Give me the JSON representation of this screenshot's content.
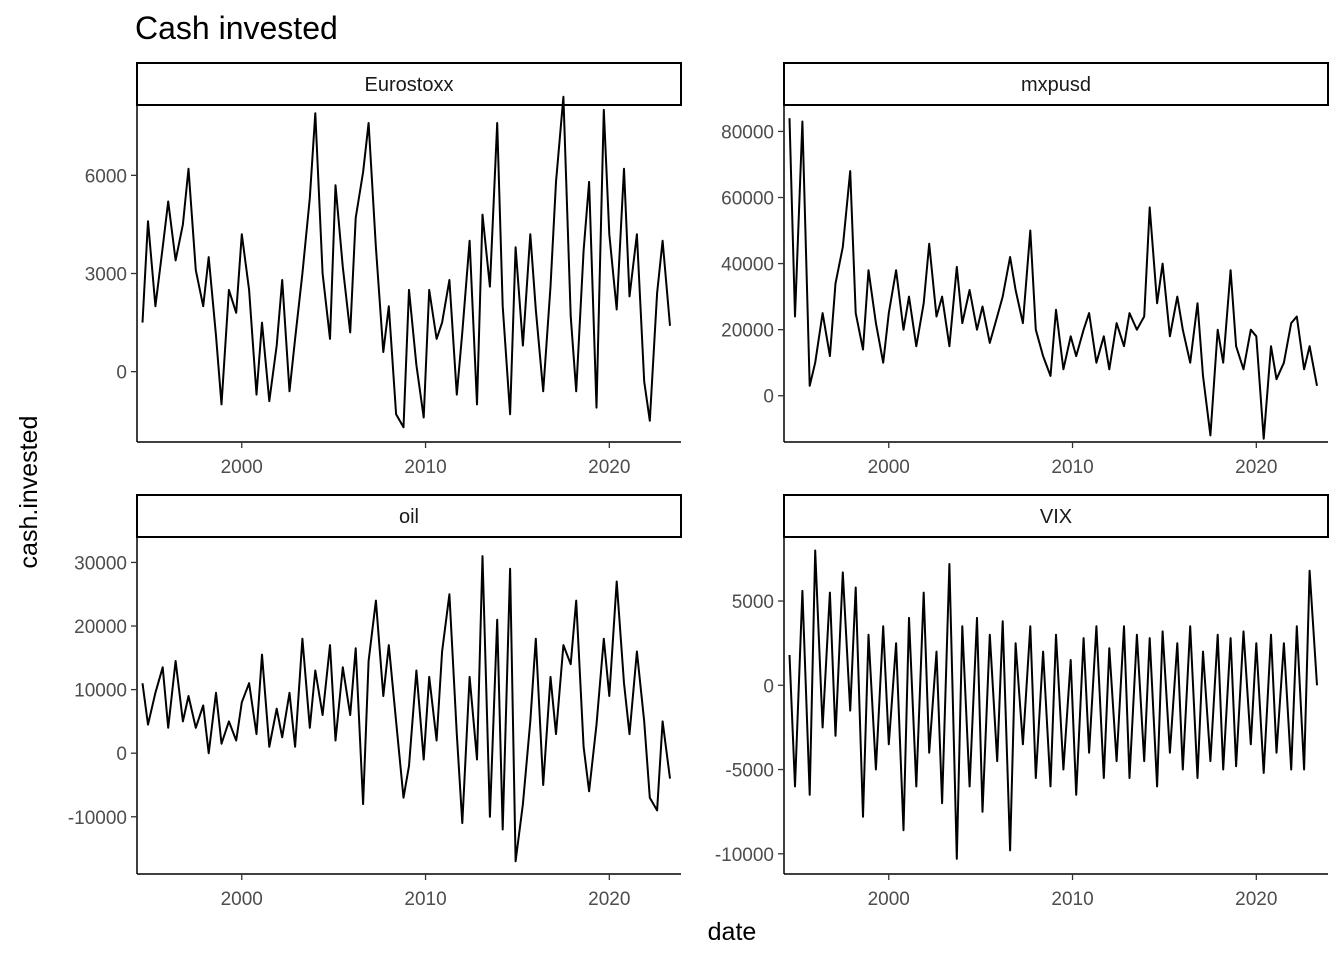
{
  "chart_data": {
    "type": "line",
    "title": "Cash invested",
    "xlabel": "date",
    "ylabel": "cash.invested",
    "grid": false,
    "line_color": "#000000",
    "panels": [
      {
        "name": "Eurostoxx",
        "xlim": [
          1994.3,
          2023.9
        ],
        "ylim": [
          -2150,
          8150
        ],
        "x_ticks": [
          2000,
          2010,
          2020
        ],
        "y_ticks": [
          0,
          3000,
          6000
        ],
        "x": [
          1994.6,
          1994.9,
          1995.3,
          1995.7,
          1996.0,
          1996.4,
          1996.8,
          1997.1,
          1997.5,
          1997.9,
          1998.2,
          1998.6,
          1998.9,
          1999.3,
          1999.7,
          2000.0,
          2000.4,
          2000.8,
          2001.1,
          2001.5,
          2001.9,
          2002.2,
          2002.6,
          2002.9,
          2003.3,
          2003.7,
          2004.0,
          2004.4,
          2004.8,
          2005.1,
          2005.5,
          2005.9,
          2006.2,
          2006.6,
          2006.9,
          2007.3,
          2007.7,
          2008.0,
          2008.4,
          2008.8,
          2009.1,
          2009.5,
          2009.9,
          2010.2,
          2010.6,
          2010.9,
          2011.3,
          2011.7,
          2012.0,
          2012.4,
          2012.8,
          2013.1,
          2013.5,
          2013.9,
          2014.2,
          2014.6,
          2014.9,
          2015.3,
          2015.7,
          2016.0,
          2016.4,
          2016.8,
          2017.1,
          2017.5,
          2017.9,
          2018.2,
          2018.6,
          2018.9,
          2019.3,
          2019.7,
          2020.0,
          2020.4,
          2020.8,
          2021.1,
          2021.5,
          2021.9,
          2022.2,
          2022.6,
          2022.9,
          2023.3
        ],
        "y": [
          1500,
          4600,
          2000,
          3800,
          5200,
          3400,
          4500,
          6200,
          3100,
          2000,
          3500,
          1100,
          -1000,
          2500,
          1800,
          4200,
          2500,
          -700,
          1500,
          -900,
          800,
          2800,
          -600,
          1000,
          3000,
          5300,
          7900,
          3000,
          1000,
          5700,
          3200,
          1200,
          4700,
          6100,
          7600,
          3800,
          600,
          2000,
          -1300,
          -1700,
          2500,
          200,
          -1400,
          2500,
          1000,
          1500,
          2800,
          -700,
          1200,
          4000,
          -1000,
          4800,
          2600,
          7600,
          2000,
          -1300,
          3800,
          800,
          4200,
          1900,
          -600,
          2600,
          5800,
          8400,
          1700,
          -600,
          3700,
          5800,
          -1100,
          8000,
          4200,
          1900,
          6200,
          2300,
          4200,
          -300,
          -1500,
          2400,
          4000,
          1400
        ]
      },
      {
        "name": "mxpusd",
        "xlim": [
          1994.3,
          2023.9
        ],
        "ylim": [
          -14000,
          88000
        ],
        "x_ticks": [
          2000,
          2010,
          2020
        ],
        "y_ticks": [
          0,
          20000,
          40000,
          60000,
          80000
        ],
        "x": [
          1994.6,
          1994.9,
          1995.3,
          1995.7,
          1996.0,
          1996.4,
          1996.8,
          1997.1,
          1997.5,
          1997.9,
          1998.2,
          1998.6,
          1998.9,
          1999.3,
          1999.7,
          2000.0,
          2000.4,
          2000.8,
          2001.1,
          2001.5,
          2001.9,
          2002.2,
          2002.6,
          2002.9,
          2003.3,
          2003.7,
          2004.0,
          2004.4,
          2004.8,
          2005.1,
          2005.5,
          2005.9,
          2006.2,
          2006.6,
          2006.9,
          2007.3,
          2007.7,
          2008.0,
          2008.4,
          2008.8,
          2009.1,
          2009.5,
          2009.9,
          2010.2,
          2010.6,
          2010.9,
          2011.3,
          2011.7,
          2012.0,
          2012.4,
          2012.8,
          2013.1,
          2013.5,
          2013.9,
          2014.2,
          2014.6,
          2014.9,
          2015.3,
          2015.7,
          2016.0,
          2016.4,
          2016.8,
          2017.1,
          2017.5,
          2017.9,
          2018.2,
          2018.6,
          2018.9,
          2019.3,
          2019.7,
          2020.0,
          2020.4,
          2020.8,
          2021.1,
          2021.5,
          2021.9,
          2022.2,
          2022.6,
          2022.9,
          2023.3
        ],
        "y": [
          84000,
          24000,
          83000,
          3000,
          10000,
          25000,
          12000,
          34000,
          45000,
          68000,
          25000,
          14000,
          38000,
          22000,
          10000,
          25000,
          38000,
          20000,
          30000,
          15000,
          28000,
          46000,
          24000,
          30000,
          15000,
          39000,
          22000,
          32000,
          20000,
          27000,
          16000,
          24000,
          30000,
          42000,
          32000,
          22000,
          50000,
          20000,
          12000,
          6000,
          26000,
          8000,
          18000,
          12000,
          20000,
          25000,
          10000,
          18000,
          8000,
          22000,
          15000,
          25000,
          20000,
          24000,
          57000,
          28000,
          40000,
          18000,
          30000,
          20000,
          10000,
          28000,
          6000,
          -12000,
          20000,
          10000,
          38000,
          15000,
          8000,
          20000,
          18000,
          -13000,
          15000,
          5000,
          10000,
          22000,
          24000,
          8000,
          15000,
          3000
        ]
      },
      {
        "name": "oil",
        "xlim": [
          1994.3,
          2023.9
        ],
        "ylim": [
          -19000,
          34000
        ],
        "x_ticks": [
          2000,
          2010,
          2020
        ],
        "y_ticks": [
          -10000,
          0,
          10000,
          20000,
          30000
        ],
        "x": [
          1994.6,
          1994.9,
          1995.3,
          1995.7,
          1996.0,
          1996.4,
          1996.8,
          1997.1,
          1997.5,
          1997.9,
          1998.2,
          1998.6,
          1998.9,
          1999.3,
          1999.7,
          2000.0,
          2000.4,
          2000.8,
          2001.1,
          2001.5,
          2001.9,
          2002.2,
          2002.6,
          2002.9,
          2003.3,
          2003.7,
          2004.0,
          2004.4,
          2004.8,
          2005.1,
          2005.5,
          2005.9,
          2006.2,
          2006.6,
          2006.9,
          2007.3,
          2007.7,
          2008.0,
          2008.4,
          2008.8,
          2009.1,
          2009.5,
          2009.9,
          2010.2,
          2010.6,
          2010.9,
          2011.3,
          2011.7,
          2012.0,
          2012.4,
          2012.8,
          2013.1,
          2013.5,
          2013.9,
          2014.2,
          2014.6,
          2014.9,
          2015.3,
          2015.7,
          2016.0,
          2016.4,
          2016.8,
          2017.1,
          2017.5,
          2017.9,
          2018.2,
          2018.6,
          2018.9,
          2019.3,
          2019.7,
          2020.0,
          2020.4,
          2020.8,
          2021.1,
          2021.5,
          2021.9,
          2022.2,
          2022.6,
          2022.9,
          2023.3
        ],
        "y": [
          11000,
          4500,
          9500,
          13500,
          4000,
          14500,
          5000,
          9000,
          4000,
          7500,
          0,
          9500,
          1500,
          5000,
          2000,
          8000,
          11000,
          3000,
          15500,
          1000,
          7000,
          2500,
          9500,
          1000,
          18000,
          4000,
          13000,
          6000,
          17000,
          2000,
          13500,
          6000,
          16500,
          -8000,
          14500,
          24000,
          9000,
          17000,
          5000,
          -7000,
          -2000,
          13000,
          -1000,
          12000,
          2000,
          16000,
          25000,
          3000,
          -11000,
          12000,
          -1000,
          31000,
          -10000,
          21000,
          -12000,
          29000,
          -17000,
          -8000,
          5000,
          18000,
          -5000,
          12000,
          3000,
          17000,
          14000,
          24000,
          1000,
          -6000,
          4500,
          18000,
          9000,
          27000,
          11000,
          3000,
          16000,
          5000,
          -7000,
          -9000,
          5000,
          -4000
        ]
      },
      {
        "name": "VIX",
        "xlim": [
          1994.3,
          2023.9
        ],
        "ylim": [
          -11200,
          8800
        ],
        "x_ticks": [
          2000,
          2010,
          2020
        ],
        "y_ticks": [
          -10000,
          -5000,
          0,
          5000
        ],
        "x": [
          1994.6,
          1994.9,
          1995.3,
          1995.7,
          1996.0,
          1996.4,
          1996.8,
          1997.1,
          1997.5,
          1997.9,
          1998.2,
          1998.6,
          1998.9,
          1999.3,
          1999.7,
          2000.0,
          2000.4,
          2000.8,
          2001.1,
          2001.5,
          2001.9,
          2002.2,
          2002.6,
          2002.9,
          2003.3,
          2003.7,
          2004.0,
          2004.4,
          2004.8,
          2005.1,
          2005.5,
          2005.9,
          2006.2,
          2006.6,
          2006.9,
          2007.3,
          2007.7,
          2008.0,
          2008.4,
          2008.8,
          2009.1,
          2009.5,
          2009.9,
          2010.2,
          2010.6,
          2010.9,
          2011.3,
          2011.7,
          2012.0,
          2012.4,
          2012.8,
          2013.1,
          2013.5,
          2013.9,
          2014.2,
          2014.6,
          2014.9,
          2015.3,
          2015.7,
          2016.0,
          2016.4,
          2016.8,
          2017.1,
          2017.5,
          2017.9,
          2018.2,
          2018.6,
          2018.9,
          2019.3,
          2019.7,
          2020.0,
          2020.4,
          2020.8,
          2021.1,
          2021.5,
          2021.9,
          2022.2,
          2022.6,
          2022.9,
          2023.3
        ],
        "y": [
          1800,
          -6000,
          5600,
          -6500,
          8000,
          -2500,
          5500,
          -3000,
          6700,
          -1500,
          5800,
          -7800,
          3000,
          -5000,
          3500,
          -3500,
          2500,
          -8600,
          4000,
          -6000,
          5500,
          -4000,
          2000,
          -7000,
          7200,
          -10300,
          3500,
          -6000,
          4000,
          -7500,
          3000,
          -4500,
          3800,
          -9800,
          2500,
          -3500,
          3500,
          -5500,
          2000,
          -6000,
          3000,
          -5000,
          1500,
          -6500,
          2800,
          -4000,
          3500,
          -5500,
          2200,
          -4500,
          3500,
          -5500,
          3000,
          -4500,
          2800,
          -6000,
          3200,
          -4000,
          2500,
          -5000,
          3500,
          -5500,
          2000,
          -4500,
          3000,
          -5000,
          2800,
          -4800,
          3200,
          -3500,
          2500,
          -5200,
          3000,
          -4000,
          2500,
          -5000,
          3500,
          -5000,
          6800,
          0
        ]
      }
    ]
  }
}
